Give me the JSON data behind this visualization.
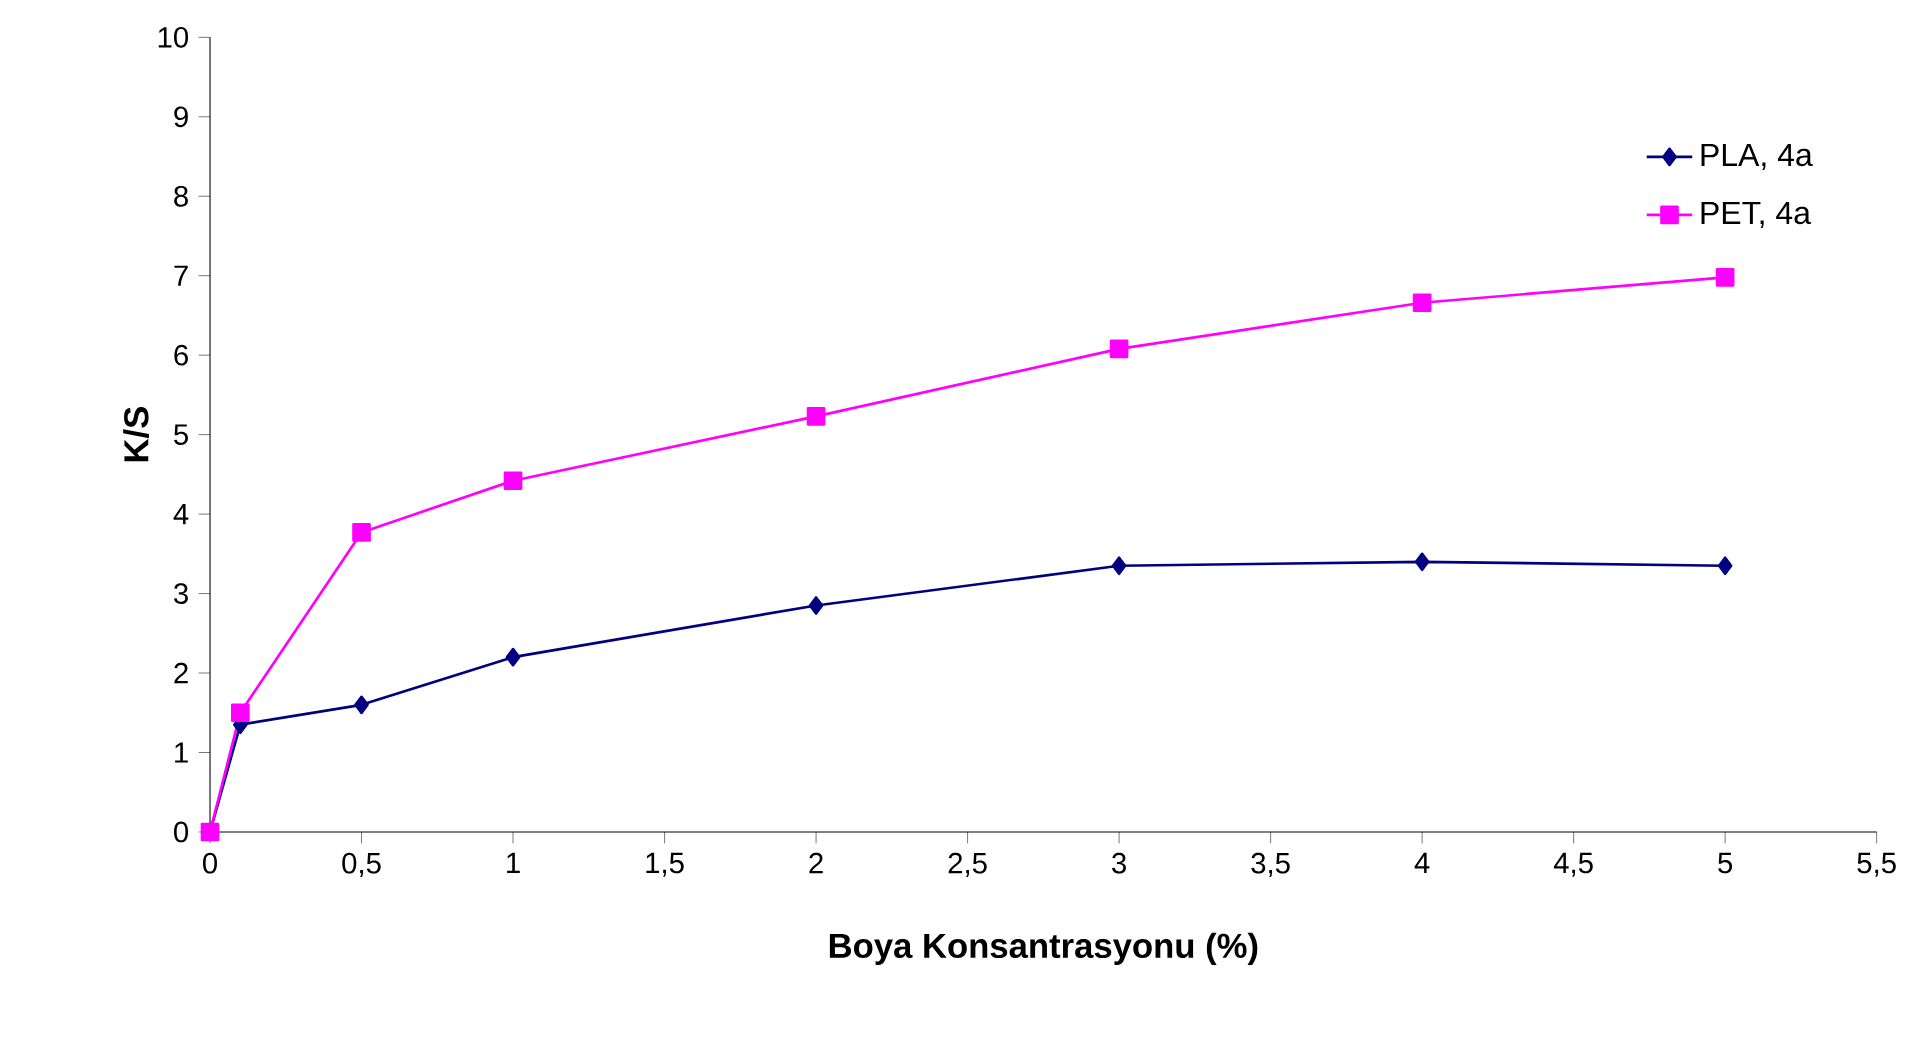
{
  "chart_data": {
    "type": "line",
    "xlabel": "Boya Konsantrasyonu (%)",
    "ylabel": "K/S",
    "x": [
      0,
      0.1,
      0.5,
      1,
      2,
      3,
      4,
      5
    ],
    "series": [
      {
        "name": "PLA, 4a",
        "color": "#000080",
        "marker": "diamond",
        "values": [
          0,
          1.35,
          1.6,
          2.2,
          2.85,
          3.35,
          3.4,
          3.35
        ]
      },
      {
        "name": "PET, 4a",
        "color": "#ff00ff",
        "marker": "square",
        "values": [
          0,
          1.5,
          3.77,
          4.42,
          5.23,
          6.08,
          6.66,
          6.98
        ]
      }
    ],
    "xlim": [
      0,
      5.5
    ],
    "ylim": [
      0,
      10
    ],
    "xticks": [
      0,
      {
        "value": 0.5,
        "label": "0,5"
      },
      1,
      {
        "value": 1.5,
        "label": "1,5"
      },
      2,
      {
        "value": 2.5,
        "label": "2,5"
      },
      3,
      {
        "value": 3.5,
        "label": "3,5"
      },
      4,
      {
        "value": 4.5,
        "label": "4,5"
      },
      5,
      {
        "value": 5.5,
        "label": "5,5"
      }
    ],
    "yticks": [
      0,
      1,
      2,
      3,
      4,
      5,
      6,
      7,
      8,
      9,
      10
    ],
    "legend": "top right"
  }
}
